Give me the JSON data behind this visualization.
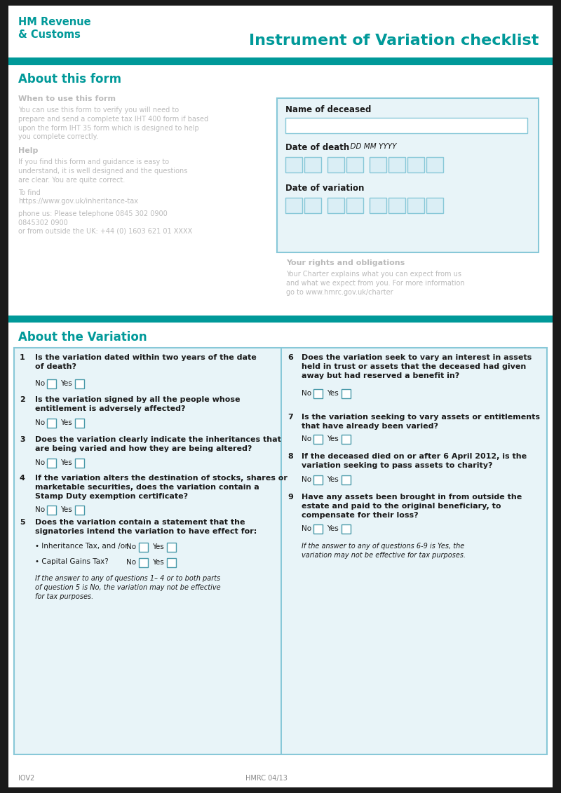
{
  "bg_color": "#1a1a1a",
  "page_bg": "#ffffff",
  "teal": "#009999",
  "border_teal": "#33aaaa",
  "light_blue_bg": "#e8f4f8",
  "form_border": "#88c8d8",
  "header_hmrc": "HM Revenue\n& Customs",
  "header_title": "Instrument of Variation checklist",
  "section1_title": "About this form",
  "section2_title": "About the Variation",
  "form_panel_label1": "Name of deceased",
  "form_panel_label2": "Date of death",
  "form_panel_label2_hint": "  DD MM YYYY",
  "form_panel_label3": "Date of variation",
  "q1": "Is the variation dated within two years of the date\nof death?",
  "q2": "Is the variation signed by all the people whose\nentitlement is adversely affected?",
  "q3": "Does the variation clearly indicate the inheritances that\nare being varied and how they are being altered?",
  "q4": "If the variation alters the destination of stocks, shares or\nmarketable securities, does the variation contain a\nStamp Duty exemption certificate?",
  "q5_head": "Does the variation contain a statement that the\nsignatories intend the variation to have effect for:",
  "q5a": "• Inheritance Tax, and /or",
  "q5b": "• Capital Gains Tax?",
  "q5_note": "If the answer to any of questions 1– 4 or to both parts\nof question 5 is No, the variation may not be effective\nfor tax purposes.",
  "q6": "Does the variation seek to vary an interest in assets\nheld in trust or assets that the deceased had given\naway but had reserved a benefit in?",
  "q7": "Is the variation seeking to vary assets or entitlements\nthat have already been varied?",
  "q8": "If the deceased died on or after 6 April 2012, is the\nvariation seeking to pass assets to charity?",
  "q9": "Have any assets been brought in from outside the\nestate and paid to the original beneficiary, to\ncompensate for their loss?",
  "q69_note": "If the answer to any of questions 6-9 is Yes, the\nvariation may not be effective for tax purposes.",
  "footer_left": "IOV2",
  "footer_center": "HMRC 04/13",
  "page_width": 8.0,
  "page_height": 11.31
}
